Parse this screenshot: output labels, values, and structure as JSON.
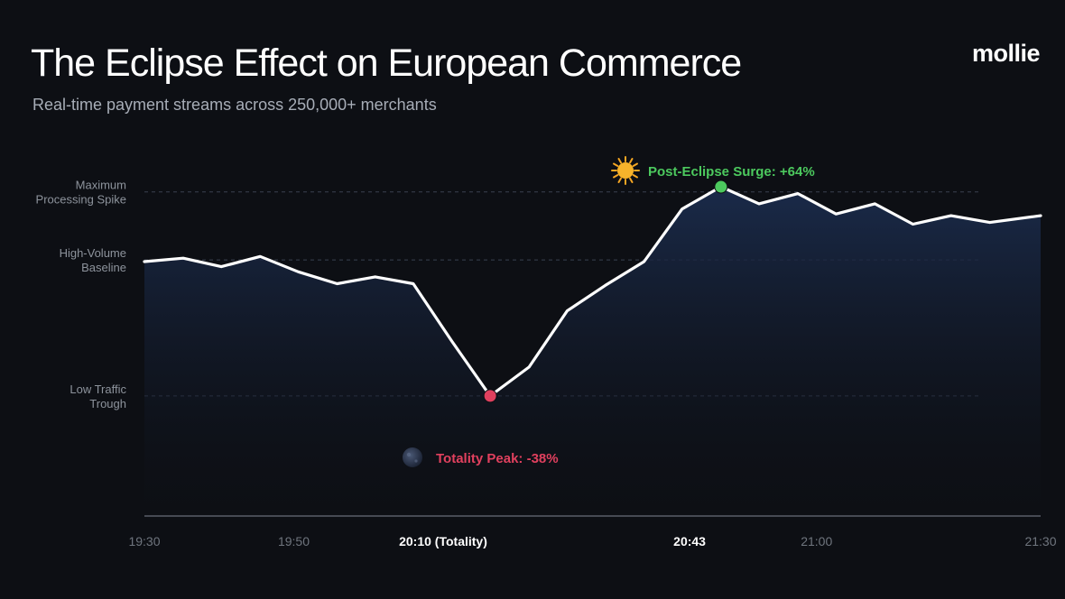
{
  "header": {
    "title": "The Eclipse Effect on European Commerce",
    "subtitle": "Real-time payment streams across 250,000+ merchants",
    "brand": "mollie"
  },
  "colors": {
    "background": "#0d0f14",
    "line": "#ffffff",
    "area_fill": "#1b2c4d",
    "trough_marker": "#e0405e",
    "peak_marker": "#4cc95e",
    "guide": "#3a4150",
    "axis": "#5a5f68",
    "label": "#8d939c"
  },
  "chart_data": {
    "type": "area",
    "title": "The Eclipse Effect on European Commerce",
    "subtitle": "Real-time payment streams across 250,000+ merchants",
    "x_unit": "time (HH:MM)",
    "x_range": [
      "19:30",
      "21:30"
    ],
    "x_ticks": [
      {
        "t": 0,
        "label": "19:30",
        "bold": false
      },
      {
        "t": 20,
        "label": "19:50",
        "bold": false
      },
      {
        "t": 40,
        "label": "20:10 (Totality)",
        "bold": true
      },
      {
        "t": 73,
        "label": "20:43",
        "bold": true
      },
      {
        "t": 90,
        "label": "21:00",
        "bold": false
      },
      {
        "t": 120,
        "label": "21:30",
        "bold": false
      }
    ],
    "y_range": [
      0,
      100
    ],
    "y_reference_lines": [
      {
        "label": [
          "Maximum",
          "Processing Spike"
        ],
        "value": 90
      },
      {
        "label": [
          "High-Volume",
          "Baseline"
        ],
        "value": 70
      },
      {
        "label": [
          "Low Traffic",
          "Trough"
        ],
        "value": 30
      }
    ],
    "series": [
      {
        "t": [
          0,
          5.2,
          10.3,
          15.5,
          20.6,
          25.8,
          30.9,
          36,
          41.2,
          46.3,
          51.5,
          56.6,
          61.7,
          66.9,
          72,
          77.2,
          82.3,
          87.5,
          92.6,
          97.8,
          102.9,
          108,
          113.2,
          120
        ],
        "values": [
          69.5,
          70.5,
          68,
          71,
          66.5,
          63,
          65,
          63,
          46,
          30,
          38.5,
          55,
          62.5,
          69.5,
          85,
          91.5,
          86.5,
          89.5,
          83.5,
          86.5,
          80.5,
          83,
          81,
          83
        ]
      }
    ],
    "annotations": [
      {
        "type": "trough",
        "t": 46.3,
        "value": 30,
        "text": "Totality Peak: -38%",
        "icon": "moon-icon",
        "color": "#e0405e"
      },
      {
        "type": "peak",
        "t": 77.2,
        "value": 91.5,
        "text": "Post-Eclipse Surge: +64%",
        "icon": "sun-icon",
        "color": "#4cc95e"
      }
    ],
    "grid": false,
    "legend": "none"
  }
}
